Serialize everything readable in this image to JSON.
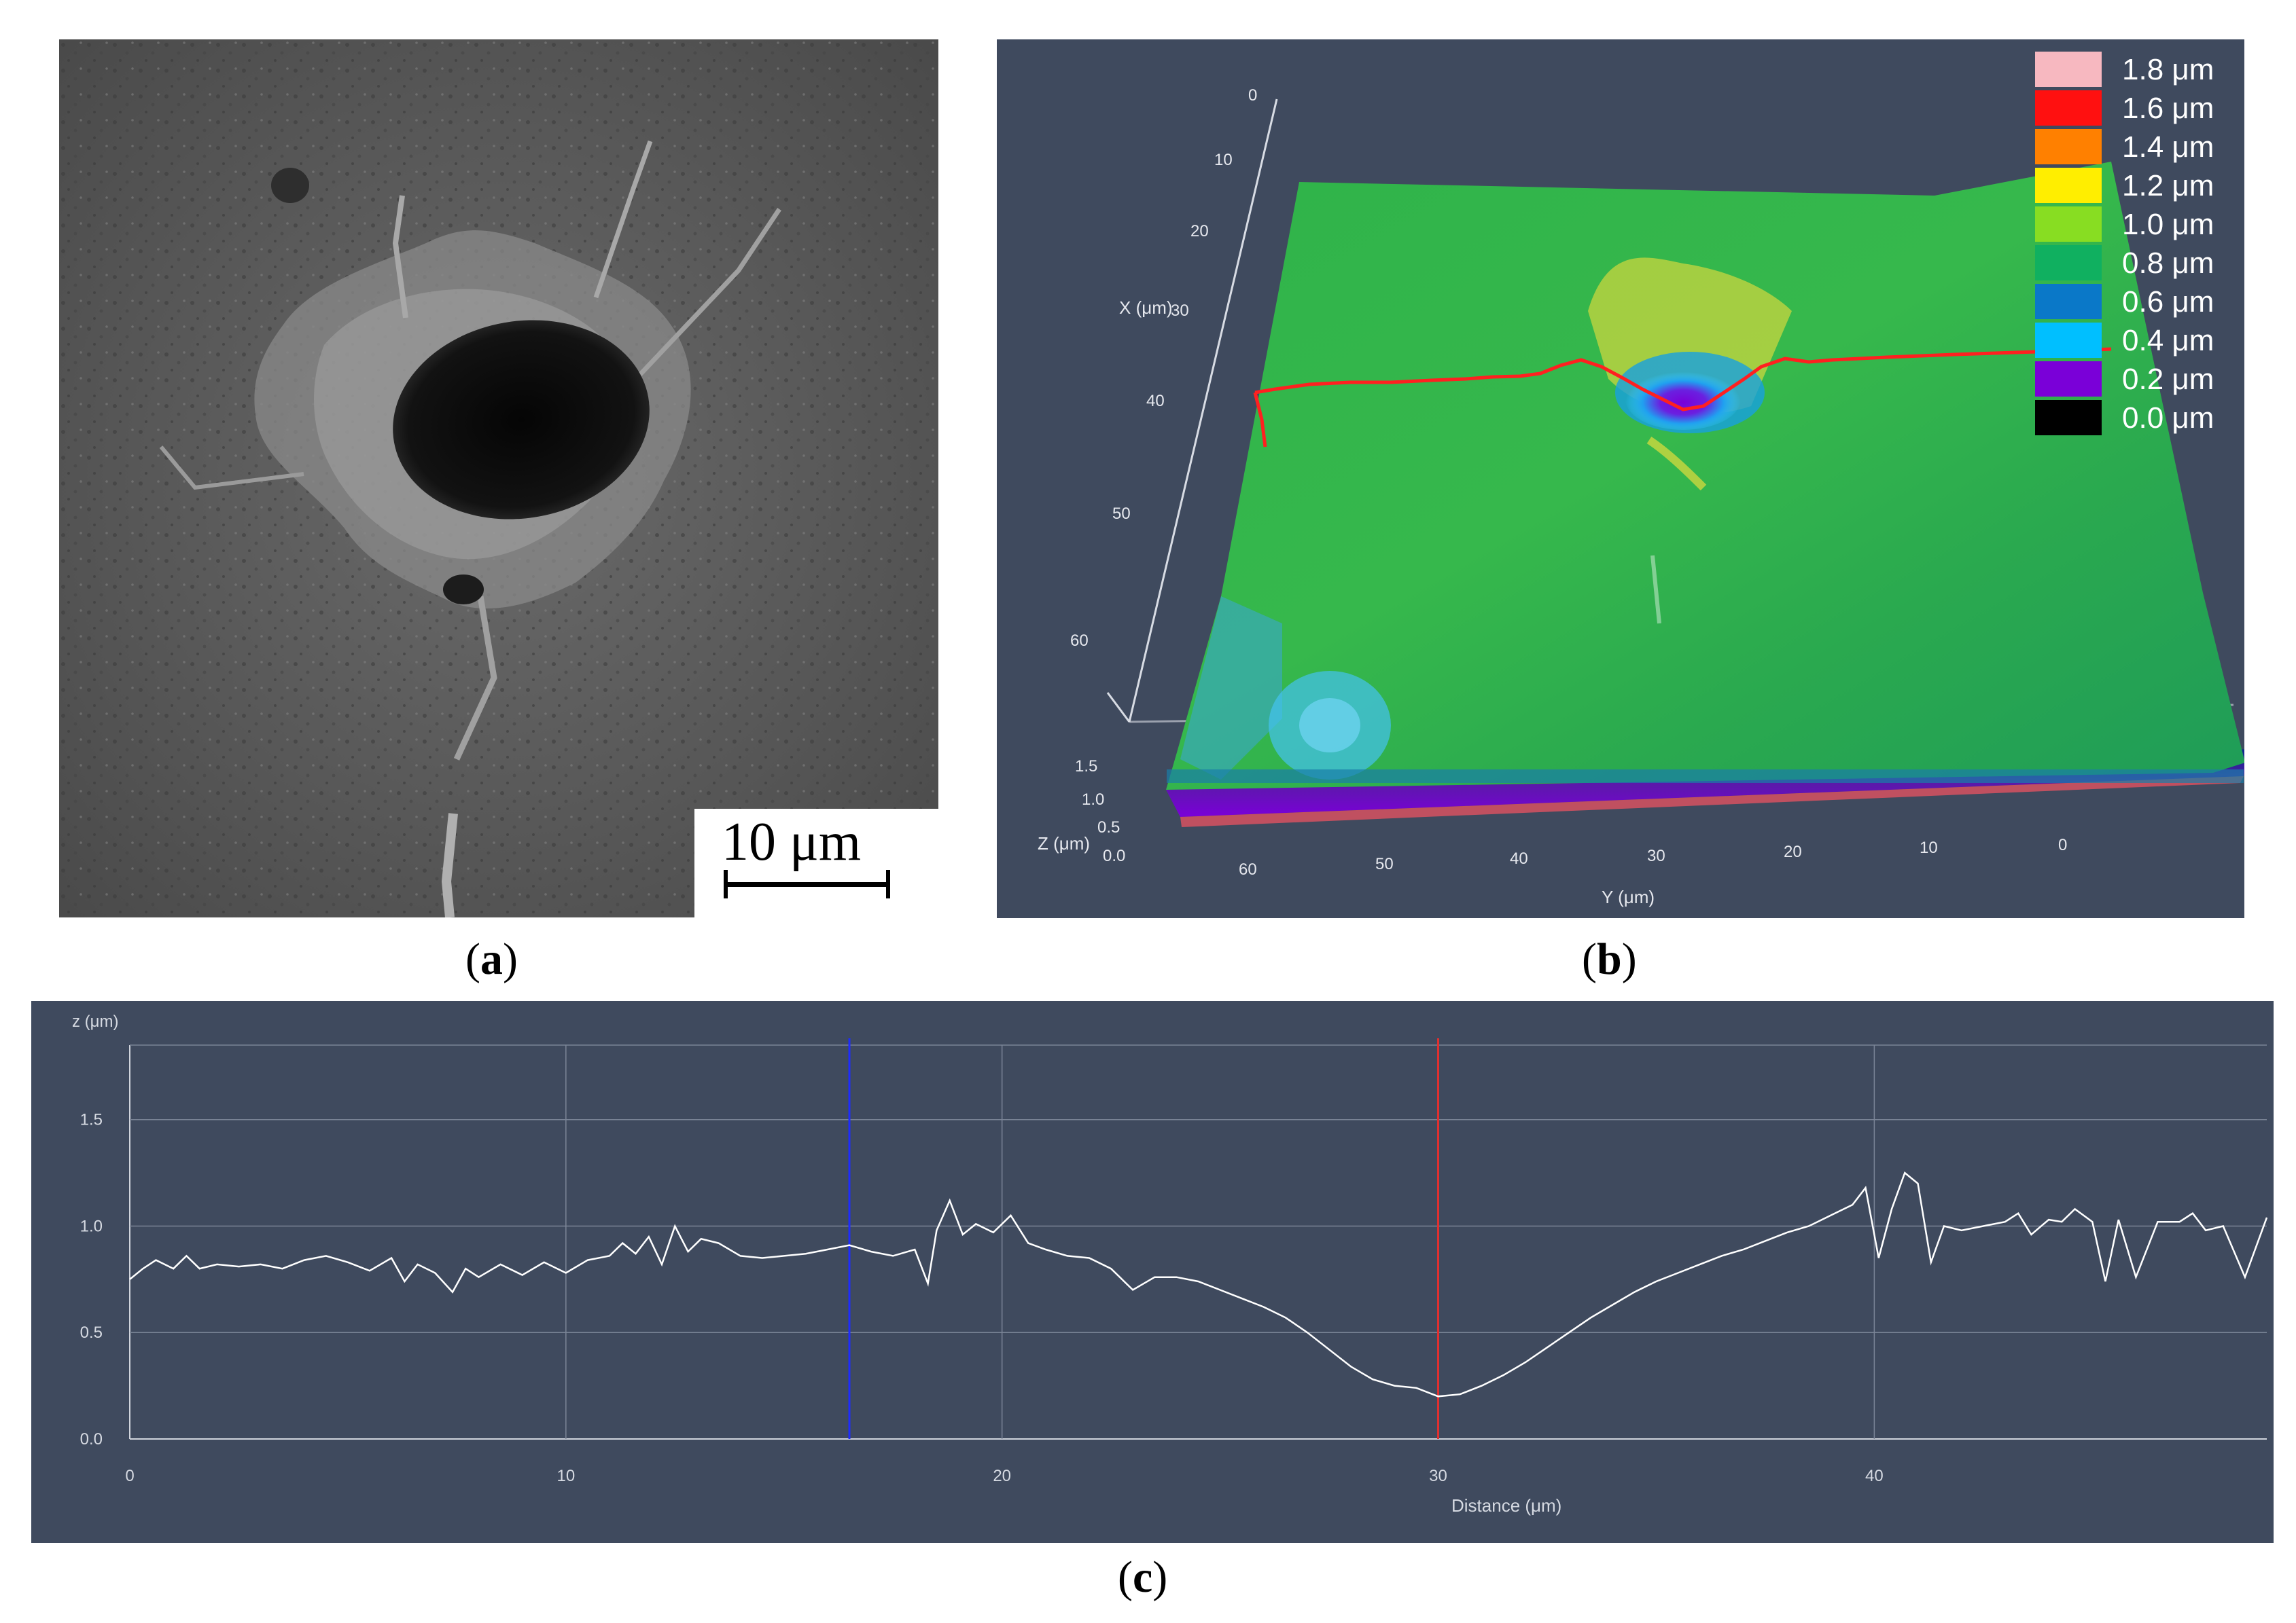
{
  "panel_a": {
    "caption_letter": "a",
    "scale_bar_label": "10 μm"
  },
  "panel_b": {
    "caption_letter": "b",
    "x_axis_label": "X (μm)",
    "y_axis_label": "Y (μm)",
    "z_axis_label": "Z (μm)",
    "x_ticks": [
      "0",
      "10",
      "20",
      "30",
      "40",
      "50",
      "60"
    ],
    "y_ticks": [
      "60",
      "50",
      "40",
      "30",
      "20",
      "10",
      "0"
    ],
    "z_ticks": [
      "1.5",
      "1.0",
      "0.5",
      "0.0"
    ],
    "legend": [
      {
        "label": "1.8 μm",
        "color": "#f7b8c0"
      },
      {
        "label": "1.6 μm",
        "color": "#ff1010"
      },
      {
        "label": "1.4 μm",
        "color": "#ff8000"
      },
      {
        "label": "1.2 μm",
        "color": "#ffee00"
      },
      {
        "label": "1.0 μm",
        "color": "#88dd22"
      },
      {
        "label": "0.8 μm",
        "color": "#10b060"
      },
      {
        "label": "0.6 μm",
        "color": "#0a78c8"
      },
      {
        "label": "0.4 μm",
        "color": "#00bfff"
      },
      {
        "label": "0.2 μm",
        "color": "#7a00d8"
      },
      {
        "label": "0.0 μm",
        "color": "#000000"
      }
    ],
    "surface_colors": {
      "base": "#2fb34a",
      "low": "#3aa6d8",
      "pit": "#7a00d8",
      "rim": "#ffe23a",
      "profile_line": "#ff2020"
    }
  },
  "panel_c": {
    "caption_letter": "c"
  },
  "chart_data": {
    "type": "line",
    "title": "",
    "xlabel": "Distance (μm)",
    "ylabel": "z (μm)",
    "xlim": [
      0,
      49
    ],
    "ylim": [
      0,
      1.85
    ],
    "x_ticks": [
      "0",
      "10",
      "20",
      "30",
      "40"
    ],
    "y_ticks": [
      "0.0",
      "0.5",
      "1.0",
      "1.5"
    ],
    "grid": true,
    "line_color": "#ffffff",
    "markers": [
      {
        "x": 16.5,
        "color": "#1e2cff"
      },
      {
        "x": 30.0,
        "color": "#e03030"
      }
    ],
    "series": [
      {
        "x": [
          0,
          0.3,
          0.6,
          1.0,
          1.3,
          1.6,
          2.0,
          2.5,
          3.0,
          3.5,
          4.0,
          4.5,
          5.0,
          5.5,
          6.0,
          6.3,
          6.6,
          7.0,
          7.4,
          7.7,
          8.0,
          8.5,
          9.0,
          9.5,
          10.0,
          10.5,
          11.0,
          11.3,
          11.6,
          11.9,
          12.2,
          12.5,
          12.8,
          13.1,
          13.5,
          14.0,
          14.5,
          15.0,
          15.5,
          16.0,
          16.5,
          17.0,
          17.5,
          18.0,
          18.3,
          18.5,
          18.8,
          19.1,
          19.4,
          19.8,
          20.2,
          20.6,
          21.0,
          21.5,
          22.0,
          22.5,
          23.0,
          23.5,
          24.0,
          24.5,
          25.0,
          25.5,
          26.0,
          26.5,
          27.0,
          27.5,
          28.0,
          28.5,
          29.0,
          29.5,
          30.0,
          30.5,
          31.0,
          31.5,
          32.0,
          32.5,
          33.0,
          33.5,
          34.0,
          34.5,
          35.0,
          35.5,
          36.0,
          36.5,
          37.0,
          37.5,
          38.0,
          38.5,
          39.0,
          39.5,
          39.8,
          40.1,
          40.4,
          40.7,
          41.0,
          41.3,
          41.6,
          42.0,
          42.5,
          43.0,
          43.3,
          43.6,
          44.0,
          44.3,
          44.6,
          45.0,
          45.3,
          45.6,
          46.0,
          46.5,
          47.0,
          47.3,
          47.6,
          48.0,
          48.5,
          49.0
        ],
        "values": [
          0.75,
          0.8,
          0.84,
          0.8,
          0.86,
          0.8,
          0.82,
          0.81,
          0.82,
          0.8,
          0.84,
          0.86,
          0.83,
          0.79,
          0.85,
          0.74,
          0.82,
          0.78,
          0.69,
          0.8,
          0.76,
          0.82,
          0.77,
          0.83,
          0.78,
          0.84,
          0.86,
          0.92,
          0.87,
          0.95,
          0.82,
          1.0,
          0.88,
          0.94,
          0.92,
          0.86,
          0.85,
          0.86,
          0.87,
          0.89,
          0.91,
          0.88,
          0.86,
          0.89,
          0.73,
          0.98,
          1.12,
          0.96,
          1.01,
          0.97,
          1.05,
          0.92,
          0.89,
          0.86,
          0.85,
          0.8,
          0.7,
          0.76,
          0.76,
          0.74,
          0.7,
          0.66,
          0.62,
          0.57,
          0.5,
          0.42,
          0.34,
          0.28,
          0.25,
          0.24,
          0.2,
          0.21,
          0.25,
          0.3,
          0.36,
          0.43,
          0.5,
          0.57,
          0.63,
          0.69,
          0.74,
          0.78,
          0.82,
          0.86,
          0.89,
          0.93,
          0.97,
          1.0,
          1.05,
          1.1,
          1.18,
          0.85,
          1.08,
          1.25,
          1.2,
          0.83,
          1.0,
          0.98,
          1.0,
          1.02,
          1.06,
          0.96,
          1.03,
          1.02,
          1.08,
          1.02,
          0.74,
          1.03,
          0.76,
          1.02,
          1.02,
          1.06,
          0.98,
          1.0,
          0.76,
          1.04
        ]
      }
    ]
  }
}
